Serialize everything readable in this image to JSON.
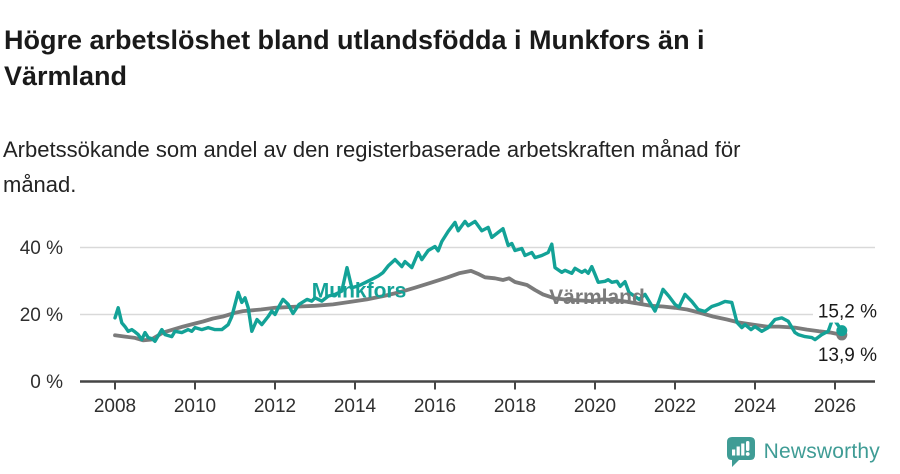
{
  "header": {
    "title_line1": "Högre arbetslöshet bland utlandsfödda i Munkfors än i",
    "title_line2": "Värmland",
    "subtitle_line1": "Arbetssökande som andel av den registerbaserade arbetskraften månad för",
    "subtitle_line2": "månad."
  },
  "chart_data": {
    "type": "line",
    "x_axis": {
      "tick_years": [
        2008,
        2010,
        2012,
        2014,
        2016,
        2018,
        2020,
        2022,
        2024,
        2026
      ],
      "ticks": [
        "2008",
        "2010",
        "2012",
        "2014",
        "2016",
        "2018",
        "2020",
        "2022",
        "2024",
        "2026"
      ],
      "xlim": [
        2007.9,
        2027.0
      ]
    },
    "y_axis": {
      "values": [
        0,
        20,
        40
      ],
      "ticks": [
        "0 %",
        "20 %",
        "40 %"
      ],
      "ylim": [
        0,
        52
      ],
      "grid": true
    },
    "series": [
      {
        "name": "Munkfors",
        "color": "#13a297",
        "width": 3.4,
        "label_anchor": {
          "year": 2014.1,
          "value": 27.3
        },
        "end_label": "15,2 %",
        "points": [
          [
            2008.0,
            19.0
          ],
          [
            2008.08,
            22.0
          ],
          [
            2008.17,
            17.5
          ],
          [
            2008.25,
            16.4
          ],
          [
            2008.33,
            15.0
          ],
          [
            2008.42,
            15.5
          ],
          [
            2008.5,
            14.8
          ],
          [
            2008.58,
            14.0
          ],
          [
            2008.67,
            12.5
          ],
          [
            2008.75,
            14.6
          ],
          [
            2008.83,
            13.1
          ],
          [
            2008.92,
            12.8
          ],
          [
            2009.0,
            12.0
          ],
          [
            2009.17,
            15.5
          ],
          [
            2009.25,
            14.0
          ],
          [
            2009.42,
            13.4
          ],
          [
            2009.5,
            15.0
          ],
          [
            2009.67,
            14.6
          ],
          [
            2009.83,
            15.5
          ],
          [
            2009.92,
            15.0
          ],
          [
            2010.0,
            16.1
          ],
          [
            2010.17,
            15.5
          ],
          [
            2010.33,
            16.1
          ],
          [
            2010.5,
            15.5
          ],
          [
            2010.67,
            15.5
          ],
          [
            2010.83,
            17.0
          ],
          [
            2010.92,
            19.4
          ],
          [
            2011.0,
            23.0
          ],
          [
            2011.08,
            26.6
          ],
          [
            2011.17,
            23.6
          ],
          [
            2011.25,
            25.0
          ],
          [
            2011.33,
            22.0
          ],
          [
            2011.42,
            15.0
          ],
          [
            2011.55,
            18.5
          ],
          [
            2011.67,
            17.0
          ],
          [
            2011.83,
            19.4
          ],
          [
            2011.92,
            21.0
          ],
          [
            2012.0,
            20.0
          ],
          [
            2012.08,
            22.0
          ],
          [
            2012.2,
            24.5
          ],
          [
            2012.33,
            23.0
          ],
          [
            2012.45,
            20.3
          ],
          [
            2012.6,
            23.0
          ],
          [
            2012.8,
            24.5
          ],
          [
            2012.92,
            24.0
          ],
          [
            2013.0,
            25.0
          ],
          [
            2013.17,
            24.0
          ],
          [
            2013.33,
            25.5
          ],
          [
            2013.5,
            26.0
          ],
          [
            2013.67,
            27.0
          ],
          [
            2013.8,
            34.0
          ],
          [
            2013.92,
            28.0
          ],
          [
            2014.08,
            28.5
          ],
          [
            2014.25,
            29.5
          ],
          [
            2014.42,
            30.5
          ],
          [
            2014.58,
            31.5
          ],
          [
            2014.7,
            32.5
          ],
          [
            2014.83,
            34.5
          ],
          [
            2015.0,
            36.4
          ],
          [
            2015.17,
            34.3
          ],
          [
            2015.25,
            35.8
          ],
          [
            2015.42,
            34.0
          ],
          [
            2015.58,
            38.5
          ],
          [
            2015.67,
            36.4
          ],
          [
            2015.83,
            39.1
          ],
          [
            2016.0,
            40.3
          ],
          [
            2016.08,
            39.0
          ],
          [
            2016.17,
            41.8
          ],
          [
            2016.33,
            44.8
          ],
          [
            2016.5,
            47.5
          ],
          [
            2016.58,
            45.0
          ],
          [
            2016.75,
            47.8
          ],
          [
            2016.83,
            46.5
          ],
          [
            2017.0,
            47.8
          ],
          [
            2017.17,
            45.0
          ],
          [
            2017.33,
            46.0
          ],
          [
            2017.42,
            43.0
          ],
          [
            2017.58,
            44.5
          ],
          [
            2017.7,
            45.6
          ],
          [
            2017.83,
            40.6
          ],
          [
            2017.92,
            41.2
          ],
          [
            2018.0,
            39.1
          ],
          [
            2018.17,
            39.7
          ],
          [
            2018.25,
            37.6
          ],
          [
            2018.42,
            38.5
          ],
          [
            2018.5,
            37.0
          ],
          [
            2018.67,
            37.6
          ],
          [
            2018.83,
            38.5
          ],
          [
            2018.92,
            41.0
          ],
          [
            2019.0,
            34.0
          ],
          [
            2019.17,
            32.6
          ],
          [
            2019.25,
            33.2
          ],
          [
            2019.42,
            32.3
          ],
          [
            2019.5,
            33.8
          ],
          [
            2019.67,
            32.6
          ],
          [
            2019.75,
            33.2
          ],
          [
            2019.83,
            32.3
          ],
          [
            2019.92,
            34.3
          ],
          [
            2020.0,
            32.0
          ],
          [
            2020.08,
            29.6
          ],
          [
            2020.25,
            29.9
          ],
          [
            2020.33,
            30.4
          ],
          [
            2020.42,
            29.6
          ],
          [
            2020.55,
            29.9
          ],
          [
            2020.63,
            28.4
          ],
          [
            2020.75,
            29.8
          ],
          [
            2020.85,
            26.6
          ],
          [
            2021.0,
            25.4
          ],
          [
            2021.1,
            24.5
          ],
          [
            2021.25,
            26.0
          ],
          [
            2021.4,
            23.0
          ],
          [
            2021.5,
            21.0
          ],
          [
            2021.6,
            24.0
          ],
          [
            2021.7,
            27.5
          ],
          [
            2021.85,
            25.4
          ],
          [
            2022.0,
            23.0
          ],
          [
            2022.1,
            22.2
          ],
          [
            2022.25,
            26.0
          ],
          [
            2022.42,
            23.9
          ],
          [
            2022.58,
            21.5
          ],
          [
            2022.75,
            20.9
          ],
          [
            2022.92,
            22.4
          ],
          [
            2023.08,
            23.0
          ],
          [
            2023.25,
            23.9
          ],
          [
            2023.42,
            23.6
          ],
          [
            2023.55,
            17.6
          ],
          [
            2023.67,
            16.1
          ],
          [
            2023.75,
            17.0
          ],
          [
            2023.9,
            15.5
          ],
          [
            2024.0,
            16.4
          ],
          [
            2024.17,
            15.0
          ],
          [
            2024.33,
            16.1
          ],
          [
            2024.5,
            18.5
          ],
          [
            2024.67,
            19.0
          ],
          [
            2024.83,
            18.0
          ],
          [
            2025.0,
            14.6
          ],
          [
            2025.08,
            14.0
          ],
          [
            2025.25,
            13.4
          ],
          [
            2025.42,
            13.1
          ],
          [
            2025.5,
            12.5
          ],
          [
            2025.67,
            14.0
          ],
          [
            2025.83,
            15.0
          ],
          [
            2025.95,
            19.0
          ],
          [
            2026.17,
            15.2
          ]
        ]
      },
      {
        "name": "Värmland",
        "color": "#7b7b7b",
        "width": 3.8,
        "label_anchor": {
          "year": 2020.05,
          "value": 25.4
        },
        "end_label": "13,9 %",
        "points": [
          [
            2008.0,
            13.8
          ],
          [
            2008.25,
            13.4
          ],
          [
            2008.5,
            13.0
          ],
          [
            2008.7,
            12.3
          ],
          [
            2008.9,
            12.5
          ],
          [
            2009.2,
            14.6
          ],
          [
            2009.45,
            15.5
          ],
          [
            2009.7,
            16.4
          ],
          [
            2010.0,
            17.3
          ],
          [
            2010.2,
            17.9
          ],
          [
            2010.45,
            18.8
          ],
          [
            2010.7,
            19.4
          ],
          [
            2011.0,
            20.5
          ],
          [
            2011.2,
            21.0
          ],
          [
            2011.65,
            21.5
          ],
          [
            2012.0,
            22.0
          ],
          [
            2012.6,
            22.4
          ],
          [
            2013.0,
            22.6
          ],
          [
            2013.45,
            23.0
          ],
          [
            2013.9,
            23.8
          ],
          [
            2014.3,
            24.5
          ],
          [
            2014.7,
            25.5
          ],
          [
            2015.1,
            26.6
          ],
          [
            2015.5,
            28.0
          ],
          [
            2015.9,
            29.5
          ],
          [
            2016.3,
            31.0
          ],
          [
            2016.6,
            32.3
          ],
          [
            2016.9,
            33.0
          ],
          [
            2017.1,
            32.0
          ],
          [
            2017.25,
            31.1
          ],
          [
            2017.5,
            30.8
          ],
          [
            2017.7,
            30.3
          ],
          [
            2017.85,
            30.8
          ],
          [
            2018.0,
            29.7
          ],
          [
            2018.3,
            28.8
          ],
          [
            2018.5,
            27.3
          ],
          [
            2018.7,
            26.0
          ],
          [
            2019.0,
            24.8
          ],
          [
            2019.3,
            24.4
          ],
          [
            2019.6,
            24.2
          ],
          [
            2019.9,
            24.0
          ],
          [
            2020.2,
            24.5
          ],
          [
            2020.5,
            24.3
          ],
          [
            2020.8,
            23.8
          ],
          [
            2021.1,
            23.2
          ],
          [
            2021.4,
            22.6
          ],
          [
            2021.7,
            22.4
          ],
          [
            2022.0,
            22.0
          ],
          [
            2022.3,
            21.5
          ],
          [
            2022.6,
            20.6
          ],
          [
            2022.95,
            19.4
          ],
          [
            2023.3,
            18.5
          ],
          [
            2023.6,
            17.6
          ],
          [
            2023.95,
            17.0
          ],
          [
            2024.3,
            16.4
          ],
          [
            2024.6,
            16.4
          ],
          [
            2025.0,
            16.1
          ],
          [
            2025.3,
            15.5
          ],
          [
            2025.6,
            15.0
          ],
          [
            2025.9,
            14.6
          ],
          [
            2026.17,
            13.9
          ]
        ]
      }
    ],
    "style": {
      "axis_color": "#454545",
      "grid_color": "#d9d9d9",
      "tick_text_color": "#2f2f2f",
      "end_label_color": "#1a1a1a"
    }
  },
  "footer": {
    "brand": "Newsworthy"
  }
}
